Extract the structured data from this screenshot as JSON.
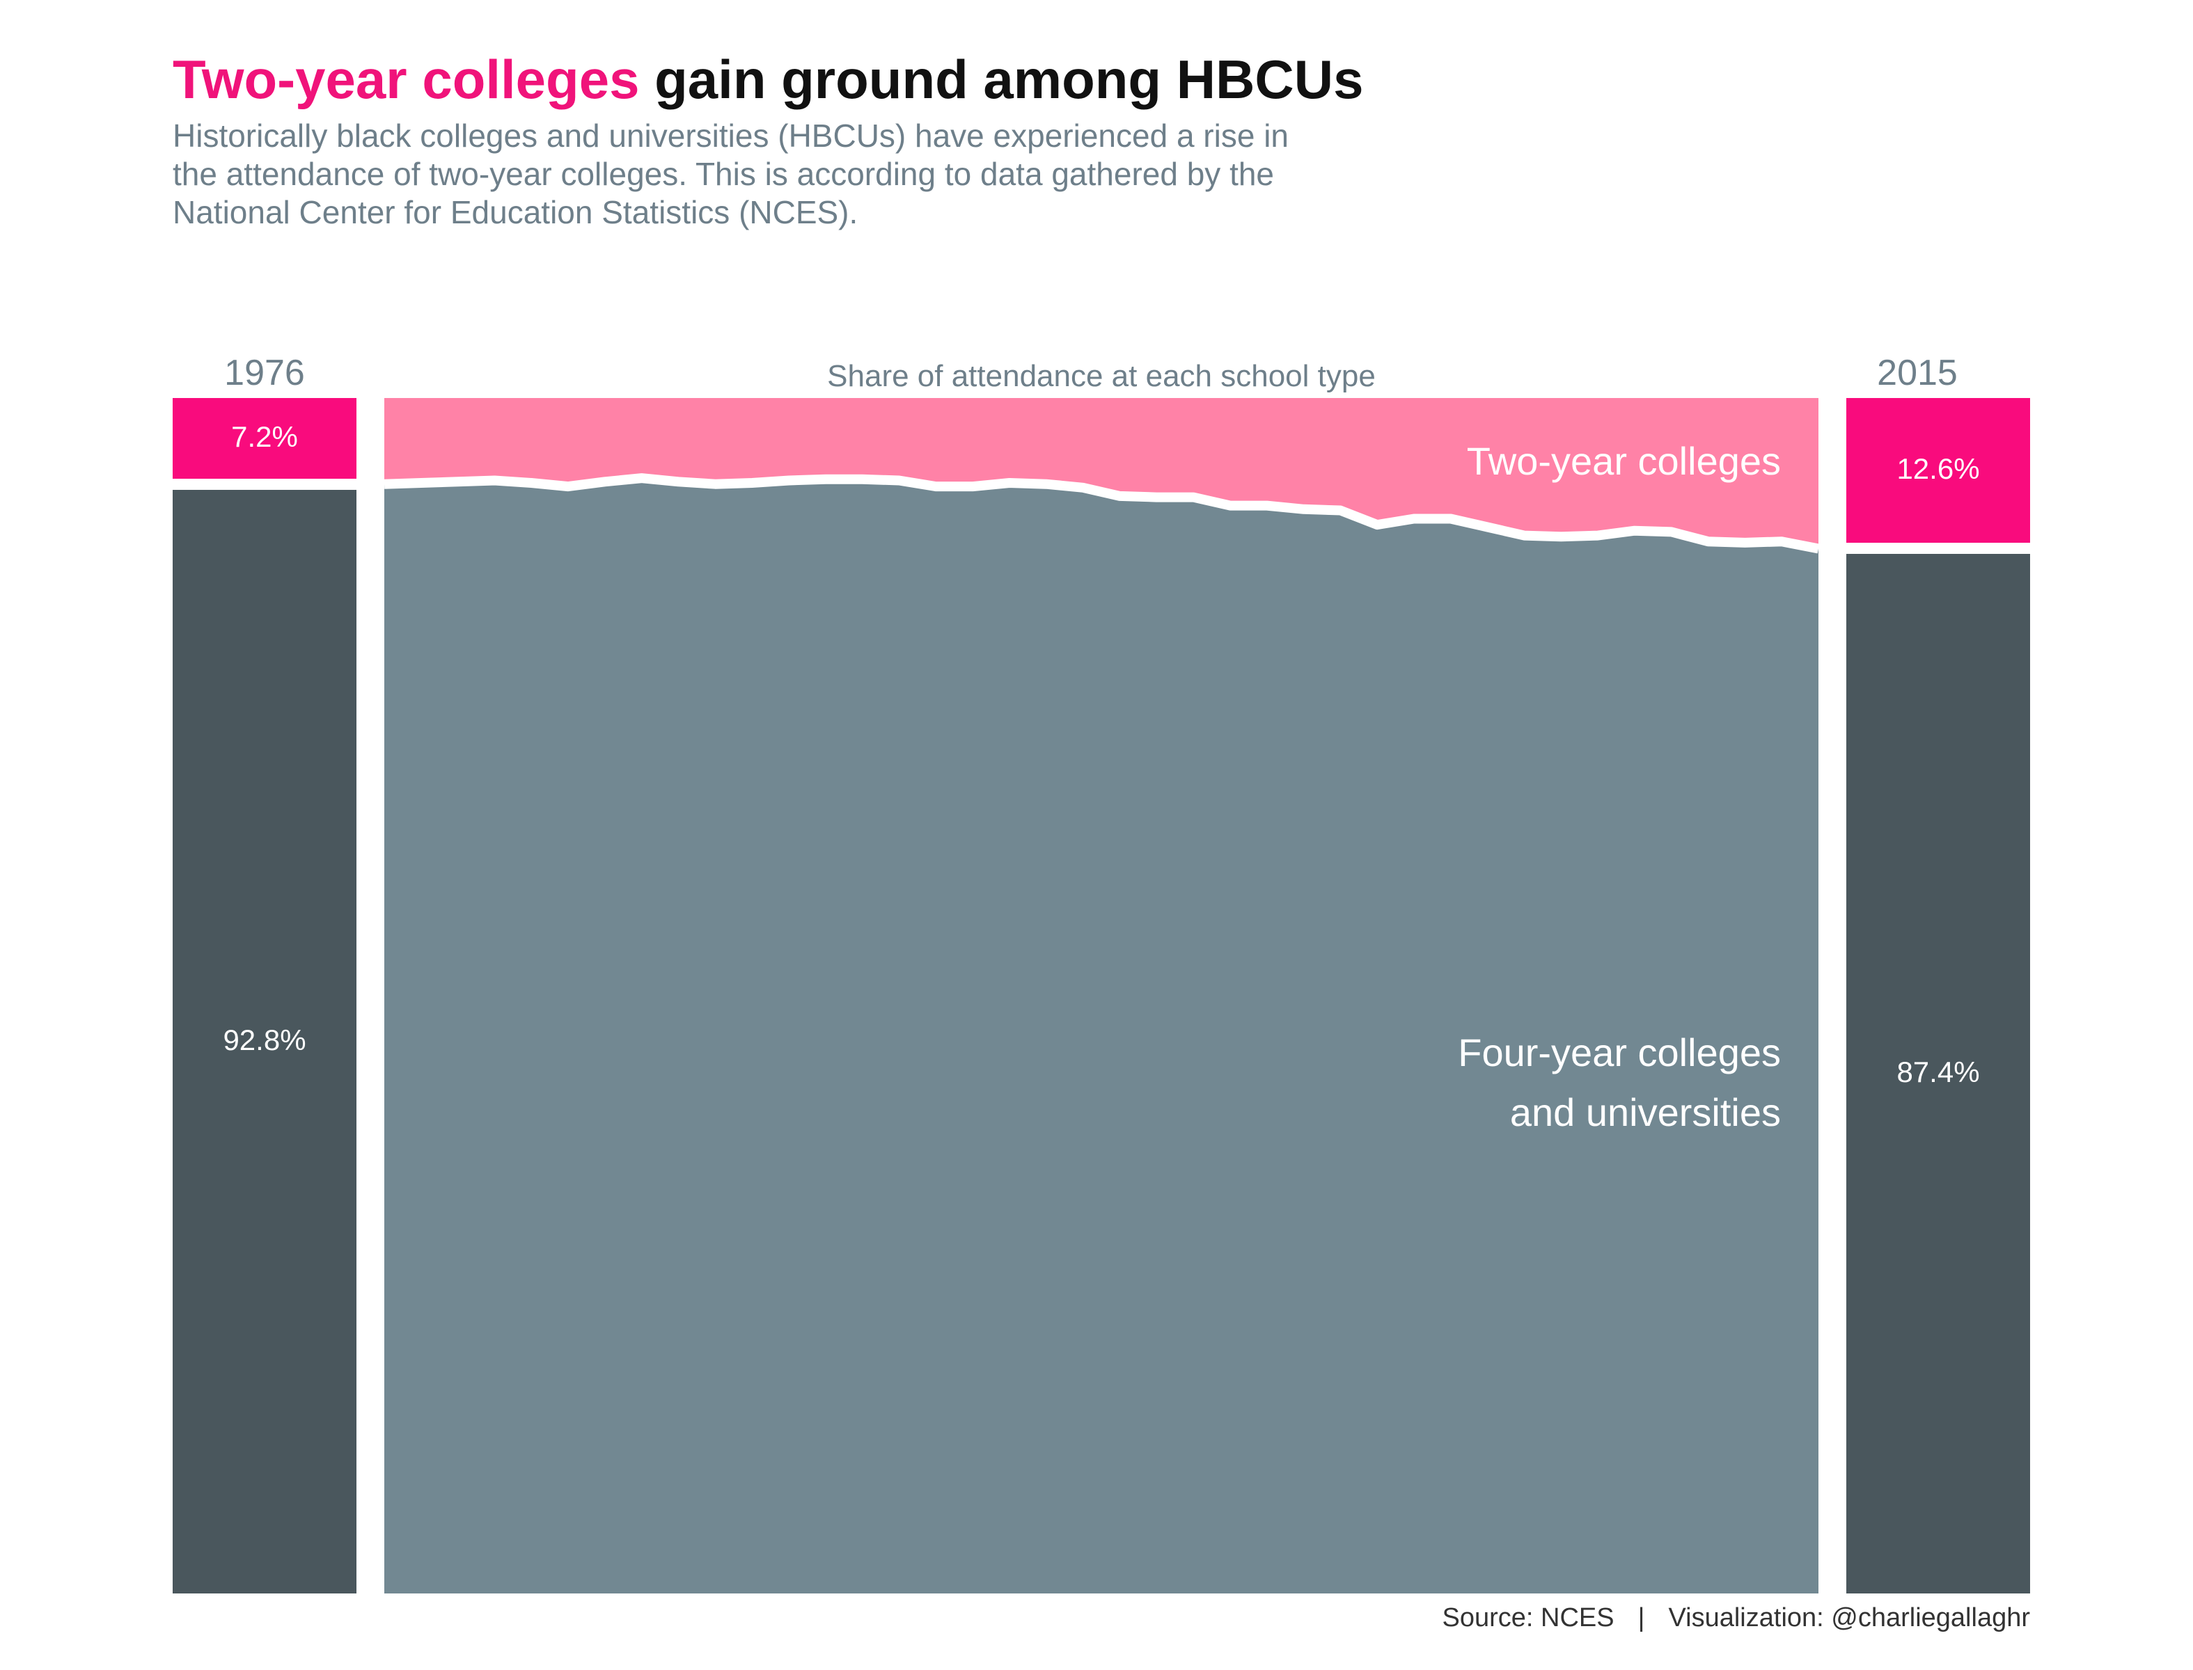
{
  "header": {
    "title_accent": "Two-year colleges",
    "title_rest": " gain ground among HBCUs",
    "subtitle": "Historically black colleges and universities (HBCUs) have experienced a rise in the attendance of two-year colleges. This is according to data gathered by the National Center for Education Statistics (NCES)."
  },
  "colors": {
    "two_year_bar": "#f90b7d",
    "four_year_bar": "#4a575d",
    "two_year_area": "#ff82a7",
    "four_year_area": "#728892"
  },
  "chart_data": {
    "type": "area",
    "caption": "Share of attendance at each school type",
    "xlim": [
      1976,
      2015
    ],
    "ylim": [
      0,
      100
    ],
    "start": {
      "year": "1976",
      "two_year_label": "7.2%",
      "four_year_label": "92.8%",
      "two_year": 7.2,
      "four_year": 92.8
    },
    "end": {
      "year": "2015",
      "two_year_label": "12.6%",
      "four_year_label": "87.4%",
      "two_year": 12.6,
      "four_year": 87.4
    },
    "series": [
      {
        "name": "Two-year colleges",
        "area_label": "Two-year colleges"
      },
      {
        "name": "Four-year colleges and universities",
        "area_label_lines": [
          "Four-year colleges",
          "and universities"
        ]
      }
    ],
    "x": [
      1976,
      1977,
      1978,
      1979,
      1980,
      1981,
      1982,
      1983,
      1984,
      1985,
      1986,
      1987,
      1988,
      1989,
      1990,
      1991,
      1992,
      1993,
      1994,
      1995,
      1996,
      1997,
      1998,
      1999,
      2000,
      2001,
      2002,
      2003,
      2004,
      2005,
      2006,
      2007,
      2008,
      2009,
      2010,
      2011,
      2012,
      2013,
      2014,
      2015
    ],
    "two_year": [
      7.2,
      7.1,
      7.0,
      6.9,
      7.1,
      7.4,
      7.0,
      6.7,
      7.0,
      7.2,
      7.1,
      6.9,
      6.8,
      6.8,
      6.9,
      7.4,
      7.4,
      7.1,
      7.2,
      7.5,
      8.2,
      8.3,
      8.3,
      9.0,
      9.0,
      9.3,
      9.4,
      10.6,
      10.1,
      10.1,
      10.8,
      11.5,
      11.6,
      11.5,
      11.1,
      11.2,
      12.0,
      12.1,
      12.0,
      12.6
    ]
  },
  "footer": {
    "source": "Source: NCES",
    "separator": "|",
    "credit": "Visualization: @charliegallaghr"
  }
}
